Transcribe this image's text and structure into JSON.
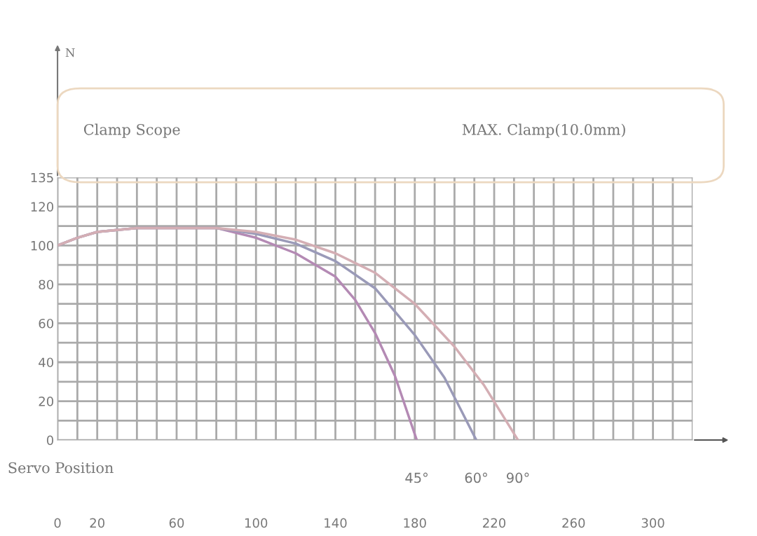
{
  "chart_data": {
    "type": "line",
    "series": [
      {
        "name": "45°",
        "color": "#b48ab4",
        "x": [
          0,
          10,
          20,
          40,
          80,
          100,
          120,
          140,
          150,
          160,
          170,
          181
        ],
        "values": [
          100,
          104,
          107,
          109,
          109,
          104,
          96,
          84,
          72,
          55,
          33,
          0
        ]
      },
      {
        "name": "60°",
        "color": "#9a9ab8",
        "x": [
          0,
          10,
          20,
          40,
          80,
          100,
          120,
          140,
          160,
          180,
          195,
          211
        ],
        "values": [
          100,
          104,
          107,
          109,
          109,
          106,
          101,
          92,
          78,
          54,
          32,
          0
        ]
      },
      {
        "name": "90°",
        "color": "#d4aeb4",
        "x": [
          0,
          10,
          20,
          40,
          80,
          100,
          120,
          140,
          160,
          180,
          200,
          215,
          232
        ],
        "values": [
          100,
          104,
          107,
          109,
          109,
          107,
          103,
          96,
          86,
          70,
          48,
          28,
          0
        ]
      }
    ],
    "xlim": [
      0,
      320
    ],
    "ylim": [
      0,
      135
    ],
    "xticks": [
      0,
      {
        "value": 10,
        "label": null
      },
      20,
      {
        "value": 30,
        "label": null
      },
      {
        "value": 40,
        "label": null
      },
      {
        "value": 50,
        "label": null
      },
      60,
      {
        "value": 70,
        "label": null
      },
      {
        "value": 80,
        "label": null
      },
      {
        "value": 90,
        "label": null
      },
      100,
      {
        "value": 110,
        "label": null
      },
      {
        "value": 120,
        "label": null
      },
      {
        "value": 130,
        "label": null
      },
      140,
      {
        "value": 150,
        "label": null
      },
      {
        "value": 160,
        "label": null
      },
      {
        "value": 170,
        "label": null
      },
      180,
      {
        "value": 190,
        "label": null
      },
      {
        "value": 200,
        "label": null
      },
      {
        "value": 210,
        "label": null
      },
      220,
      {
        "value": 230,
        "label": null
      },
      {
        "value": 240,
        "label": null
      },
      {
        "value": 250,
        "label": null
      },
      260,
      {
        "value": 270,
        "label": null
      },
      {
        "value": 280,
        "label": null
      },
      {
        "value": 290,
        "label": null
      },
      300,
      {
        "value": 310,
        "label": null
      },
      {
        "value": 320,
        "label": null
      }
    ],
    "yticks": [
      0,
      {
        "value": 10,
        "label": null
      },
      20,
      {
        "value": 30,
        "label": null
      },
      40,
      {
        "value": 50,
        "label": null
      },
      60,
      {
        "value": 70,
        "label": null
      },
      80,
      {
        "value": 90,
        "label": null
      },
      100,
      {
        "value": 110,
        "label": null
      },
      120,
      135
    ],
    "grid": true,
    "marker": "none",
    "line_style": "solid",
    "legend": false,
    "annotations": [
      "N",
      "Servo Position",
      "Clamp Scope",
      "MAX. Clamp(10.0mm)"
    ]
  }
}
